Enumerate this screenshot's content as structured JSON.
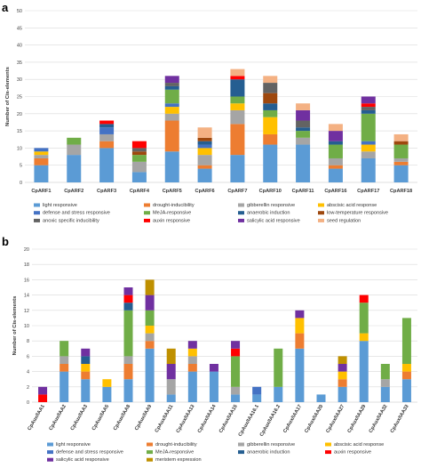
{
  "panels": {
    "a": {
      "letter": "a"
    },
    "b": {
      "letter": "b"
    }
  },
  "chart_data": [
    {
      "type": "bar",
      "stacked": true,
      "ylabel": "Number of Cis-elements",
      "ylim": [
        0,
        50
      ],
      "yticks": [
        0,
        5,
        10,
        15,
        20,
        25,
        30,
        35,
        40,
        45,
        50
      ],
      "grid": true,
      "legend_position": "bottom",
      "categories": [
        "CpARF1",
        "CpARF2",
        "CpARF3",
        "CpARF4",
        "CpARF5",
        "CpARF6",
        "CpARF7",
        "CpARF10",
        "CpARF11",
        "CpARF16",
        "CpARF17",
        "CpARF18"
      ],
      "series": [
        {
          "name": "light responsive",
          "color": "#5b9bd5",
          "values": [
            5,
            8,
            10,
            3,
            9,
            4,
            8,
            11,
            11,
            4,
            7,
            5
          ]
        },
        {
          "name": "drought-inducibility",
          "color": "#ed7d31",
          "values": [
            2,
            0,
            2,
            0,
            9,
            1,
            9,
            3,
            0,
            1,
            0,
            1
          ]
        },
        {
          "name": "gibberellin responsive",
          "color": "#a5a5a5",
          "values": [
            1,
            3,
            2,
            3,
            2,
            3,
            4,
            0,
            2,
            2,
            2,
            1
          ]
        },
        {
          "name": "abscisic acid response",
          "color": "#ffc000",
          "values": [
            1,
            0,
            0,
            0,
            2,
            2,
            2,
            5,
            0,
            0,
            2,
            0
          ]
        },
        {
          "name": "defense and stress responsive",
          "color": "#4472c4",
          "values": [
            1,
            0,
            2,
            0,
            1,
            1,
            0,
            0,
            0,
            0,
            1,
            0
          ]
        },
        {
          "name": "MeJA-responsive",
          "color": "#70ad47",
          "values": [
            0,
            2,
            0,
            2,
            4,
            0,
            2,
            2,
            2,
            4,
            8,
            4
          ]
        },
        {
          "name": "anaerobic induction",
          "color": "#255e91",
          "values": [
            0,
            0,
            1,
            0,
            1,
            1,
            5,
            2,
            1,
            1,
            1,
            0
          ]
        },
        {
          "name": "low-temperature responsive",
          "color": "#9e480e",
          "values": [
            0,
            0,
            0,
            1,
            0,
            1,
            0,
            3,
            0,
            0,
            0,
            1
          ]
        },
        {
          "name": "anoxic specific inducibility",
          "color": "#636363",
          "values": [
            0,
            0,
            0,
            1,
            1,
            0,
            0,
            3,
            2,
            0,
            1,
            0
          ]
        },
        {
          "name": "auxin responsive",
          "color": "#ff0000",
          "values": [
            0,
            0,
            1,
            2,
            0,
            0,
            1,
            0,
            0,
            0,
            1,
            0
          ]
        },
        {
          "name": "salicylic acid responsive",
          "color": "#7030a0",
          "values": [
            0,
            0,
            0,
            0,
            2,
            0,
            0,
            0,
            3,
            3,
            2,
            0
          ]
        },
        {
          "name": "seed regulation",
          "color": "#f4b183",
          "values": [
            0,
            0,
            0,
            0,
            0,
            3,
            2,
            2,
            2,
            2,
            0,
            2
          ]
        }
      ]
    },
    {
      "type": "bar",
      "stacked": true,
      "ylabel": "Number of Cis-elements",
      "ylim": [
        0,
        20
      ],
      "yticks": [
        0,
        2,
        4,
        6,
        8,
        10,
        12,
        14,
        16,
        18,
        20
      ],
      "grid": true,
      "legend_position": "bottom",
      "categories": [
        "CpAux/IAA1",
        "CpAux/IAA2",
        "CpAux/IAA3",
        "CpAux/IAA5",
        "CpAux/IAA8",
        "CpAux/IAA9",
        "CpAux/IAA11",
        "CpAux/IAA13",
        "CpAux/IAA14",
        "CpAux/IAA15",
        "CpAux/IAA16.1",
        "CpAux/IAA16.2",
        "CpAux/IAA17",
        "CpAux/IAA20",
        "CpAux/IAA27",
        "CpAux/IAA29",
        "CpAux/IAA32",
        "CpAux/IAA33"
      ],
      "series": [
        {
          "name": "light responsive",
          "color": "#5b9bd5",
          "values": [
            0,
            4,
            3,
            2,
            3,
            7,
            1,
            4,
            4,
            1,
            1,
            2,
            7,
            1,
            2,
            8,
            2,
            3
          ]
        },
        {
          "name": "drought-inducibility",
          "color": "#ed7d31",
          "values": [
            0,
            1,
            1,
            0,
            2,
            1,
            0,
            1,
            0,
            0,
            0,
            0,
            2,
            0,
            1,
            0,
            0,
            1
          ]
        },
        {
          "name": "gibberellin responsive",
          "color": "#a5a5a5",
          "values": [
            0,
            1,
            0,
            0,
            1,
            1,
            2,
            1,
            0,
            1,
            0,
            0,
            0,
            0,
            0,
            0,
            1,
            0
          ]
        },
        {
          "name": "abscisic acid response",
          "color": "#ffc000",
          "values": [
            0,
            0,
            1,
            1,
            0,
            1,
            0,
            1,
            0,
            0,
            0,
            0,
            2,
            0,
            1,
            1,
            0,
            1
          ]
        },
        {
          "name": "defense and stress responsive",
          "color": "#4472c4",
          "values": [
            0,
            0,
            0,
            0,
            0,
            0,
            0,
            0,
            0,
            0,
            1,
            0,
            0,
            0,
            0,
            0,
            0,
            0
          ]
        },
        {
          "name": "MeJA-responsive",
          "color": "#70ad47",
          "values": [
            0,
            2,
            0,
            0,
            6,
            2,
            0,
            0,
            0,
            4,
            0,
            5,
            0,
            0,
            0,
            4,
            2,
            6
          ]
        },
        {
          "name": "anaerobic induction",
          "color": "#255e91",
          "values": [
            0,
            0,
            1,
            0,
            1,
            0,
            0,
            0,
            0,
            0,
            0,
            0,
            0,
            0,
            0,
            0,
            0,
            0
          ]
        },
        {
          "name": "auxin responsive",
          "color": "#ff0000",
          "values": [
            1,
            0,
            0,
            0,
            1,
            0,
            0,
            0,
            0,
            1,
            0,
            0,
            0,
            0,
            0,
            1,
            0,
            0
          ]
        },
        {
          "name": "salicylic acid responsive",
          "color": "#7030a0",
          "values": [
            1,
            0,
            1,
            0,
            1,
            2,
            2,
            1,
            1,
            1,
            0,
            0,
            1,
            0,
            1,
            0,
            0,
            0
          ]
        },
        {
          "name": "meristem expression",
          "color": "#bf9000",
          "values": [
            0,
            0,
            0,
            0,
            0,
            2,
            2,
            0,
            0,
            0,
            0,
            0,
            0,
            0,
            1,
            0,
            0,
            0
          ]
        }
      ]
    }
  ]
}
